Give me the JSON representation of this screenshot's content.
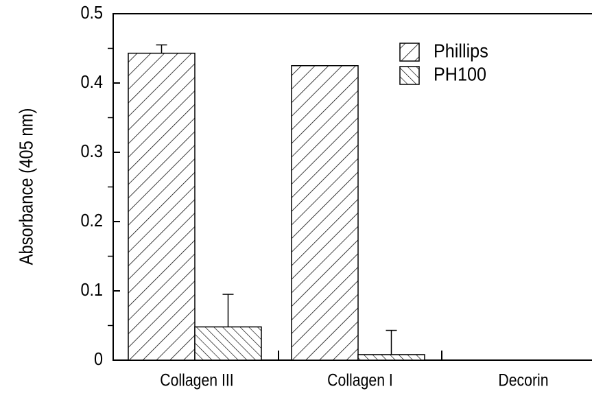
{
  "chart_data": {
    "type": "bar",
    "ylabel": "Absorbance (405 nm)",
    "categories": [
      "Collagen III",
      "Collagen I",
      "Decorin"
    ],
    "series": [
      {
        "name": "Phillips",
        "color": "#000000",
        "hatch": "/",
        "values": [
          0.443,
          0.425,
          0
        ],
        "errors": [
          0.012,
          0,
          0
        ]
      },
      {
        "name": "PH100",
        "color": "#000000",
        "hatch": "\\",
        "values": [
          0.048,
          0.008,
          0
        ],
        "errors": [
          0.047,
          0.035,
          0
        ]
      }
    ],
    "ylim": [
      0,
      0.5
    ],
    "yticks": [
      0,
      0.1,
      0.2,
      0.3,
      0.4,
      0.5
    ],
    "legend": "upper right",
    "grid": false
  }
}
